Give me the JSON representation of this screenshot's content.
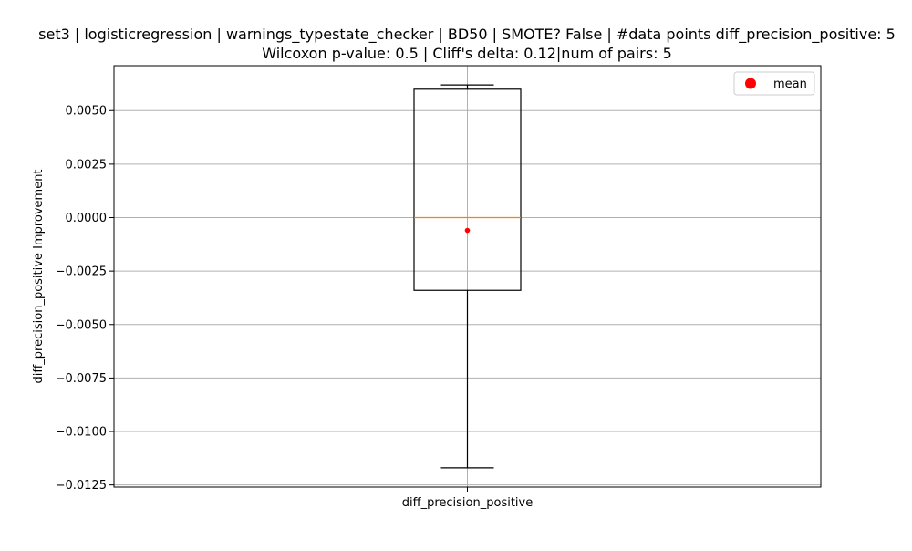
{
  "chart_data": {
    "type": "box",
    "title_line1": "set3 | logisticregression | warnings_typestate_checker | BD50 | SMOTE? False | #data points diff_precision_positive: 5",
    "title_line2": "Wilcoxon p-value: 0.5 | Cliff's delta: 0.12|num of pairs: 5",
    "xlabel": "",
    "ylabel": "diff_precision_positive Improvement",
    "categories": [
      "diff_precision_positive"
    ],
    "ylim": [
      -0.0126,
      0.0071
    ],
    "yticks": [
      0.005,
      0.0025,
      0.0,
      -0.0025,
      -0.005,
      -0.0075,
      -0.01,
      -0.0125
    ],
    "ytick_labels": [
      "0.0050",
      "0.0025",
      "0.0000",
      "−0.0025",
      "−0.0050",
      "−0.0075",
      "−0.0100",
      "−0.0125"
    ],
    "grid": true,
    "legend_position": "top-right",
    "legend": [
      {
        "label": "mean",
        "color": "#ff0000",
        "marker": "circle"
      }
    ],
    "series": [
      {
        "whisker_low": -0.0117,
        "q1": -0.0034,
        "median": 0.0,
        "q3": 0.006,
        "whisker_high": 0.0062,
        "mean": -0.0006
      }
    ],
    "colors": {
      "box": "#000000",
      "median": "#ff7f0e",
      "mean": "#ff0000",
      "grid": "#b0b0b0"
    }
  }
}
